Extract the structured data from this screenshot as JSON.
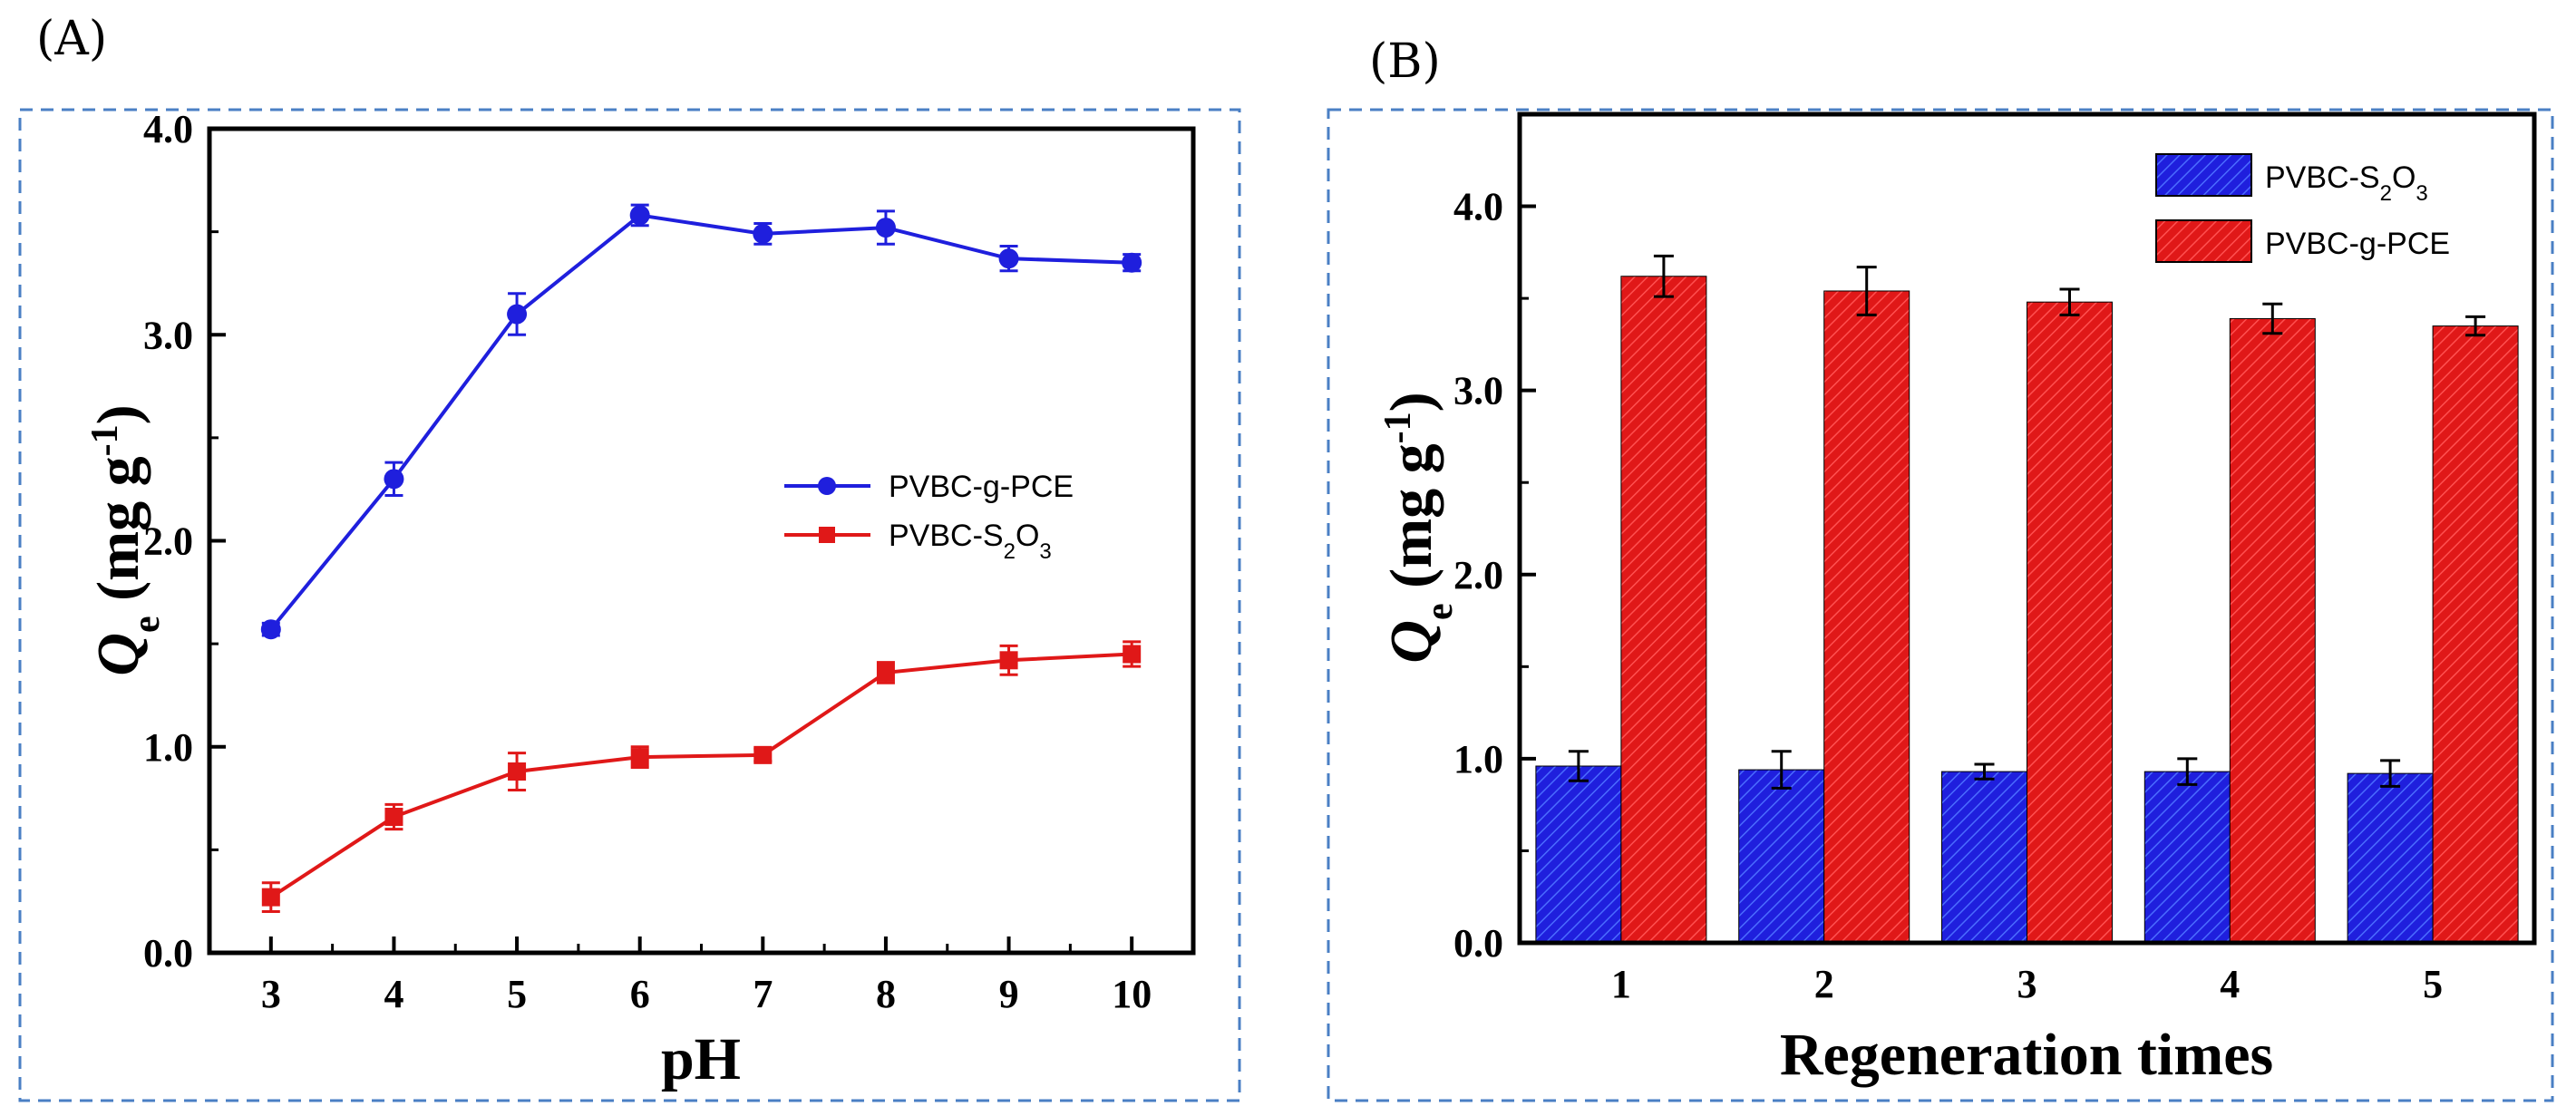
{
  "chart_data": [
    {
      "panel": "(A)",
      "type": "line",
      "xlabel": "pH",
      "ylabel": "Qe (mg g-1)",
      "ylabel_parts": {
        "q": "Q",
        "q_sub": "e",
        "unit": " (mg g",
        "unit_sup": "-1",
        "close": ")"
      },
      "xlim": [
        2.5,
        10.5
      ],
      "ylim": [
        0,
        4
      ],
      "x": [
        3,
        4,
        5,
        6,
        7,
        8,
        9,
        10
      ],
      "x_ticks": [
        "3",
        "4",
        "5",
        "6",
        "7",
        "8",
        "9",
        "10"
      ],
      "y_ticks": [
        "0.0",
        "1.0",
        "2.0",
        "3.0",
        "4.0"
      ],
      "y_tick_values": [
        0,
        1,
        2,
        3,
        4
      ],
      "series": [
        {
          "name": "PVBC-g-PCE",
          "legend": {
            "base": "PVBC-g-PCE",
            "parts": []
          },
          "color": "#1f1fdd",
          "marker": "circle",
          "values": [
            1.57,
            2.3,
            3.1,
            3.58,
            3.49,
            3.52,
            3.37,
            3.35
          ],
          "errors": [
            0.03,
            0.08,
            0.1,
            0.05,
            0.05,
            0.08,
            0.06,
            0.04
          ]
        },
        {
          "name": "PVBC-S2O3",
          "legend": {
            "base": "PVBC-S",
            "parts": [
              [
                "2",
                "sub"
              ],
              [
                "O",
                ""
              ],
              [
                "3",
                "sub"
              ]
            ]
          },
          "color": "#e01818",
          "marker": "square",
          "values": [
            0.27,
            0.66,
            0.88,
            0.95,
            0.96,
            1.36,
            1.42,
            1.45
          ],
          "errors": [
            0.07,
            0.06,
            0.09,
            0.05,
            0.03,
            0.05,
            0.07,
            0.06
          ]
        }
      ]
    },
    {
      "panel": "(B)",
      "type": "bar",
      "xlabel": "Regeneration times",
      "ylabel": "Qe (mg g-1)",
      "ylabel_parts": {
        "q": "Q",
        "q_sub": "e",
        "unit": " (mg g",
        "unit_sup": "-1",
        "close": ")"
      },
      "ylim": [
        0,
        4.5
      ],
      "categories": [
        "1",
        "2",
        "3",
        "4",
        "5"
      ],
      "y_ticks": [
        "0.0",
        "1.0",
        "2.0",
        "3.0",
        "4.0"
      ],
      "y_tick_values": [
        0,
        1,
        2,
        3,
        4
      ],
      "series": [
        {
          "name": "PVBC-S2O3",
          "legend": {
            "base": "PVBC-S",
            "parts": [
              [
                "2",
                "sub"
              ],
              [
                "O",
                ""
              ],
              [
                "3",
                "sub"
              ]
            ]
          },
          "color": "#1f1fdd",
          "values": [
            0.96,
            0.94,
            0.93,
            0.93,
            0.92
          ],
          "errors": [
            0.08,
            0.1,
            0.04,
            0.07,
            0.07
          ]
        },
        {
          "name": "PVBC-g-PCE",
          "legend": {
            "base": "PVBC-g-PCE",
            "parts": []
          },
          "color": "#e01818",
          "values": [
            3.62,
            3.54,
            3.48,
            3.39,
            3.35
          ],
          "errors": [
            0.11,
            0.13,
            0.07,
            0.08,
            0.05
          ]
        }
      ]
    }
  ]
}
